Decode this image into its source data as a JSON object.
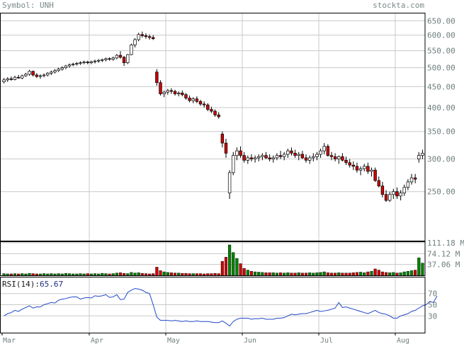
{
  "header": {
    "symbol_label": "Symbol: UNH",
    "source_label": "stockta.com"
  },
  "colors": {
    "up": "#ffffff",
    "down": "#cc0000",
    "vol_up": "#008000",
    "vol_down": "#cc0000",
    "rsi_line": "#1f47c8",
    "grid": "#c8c8c8",
    "frame": "#000000"
  },
  "chart_data": [
    {
      "type": "candlestick",
      "title": "",
      "xlabels": [
        "Mar",
        "Apr",
        "May",
        "Jun",
        "Jul",
        "Aug"
      ],
      "ylim": [
        190,
        680
      ],
      "yscale": "log",
      "yticks": [
        "650.00",
        "600.00",
        "550.00",
        "500.00",
        "450.00",
        "400.00",
        "350.00",
        "300.00",
        "250.00"
      ],
      "grid": true,
      "ohlc": [
        [
          462,
          472,
          458,
          467
        ],
        [
          467,
          474,
          462,
          470
        ],
        [
          470,
          476,
          465,
          468
        ],
        [
          468,
          478,
          466,
          474
        ],
        [
          474,
          480,
          470,
          472
        ],
        [
          472,
          481,
          469,
          478
        ],
        [
          478,
          486,
          475,
          482
        ],
        [
          482,
          494,
          478,
          490
        ],
        [
          490,
          492,
          476,
          480
        ],
        [
          480,
          485,
          472,
          476
        ],
        [
          476,
          482,
          470,
          478
        ],
        [
          478,
          484,
          474,
          480
        ],
        [
          480,
          488,
          476,
          485
        ],
        [
          485,
          492,
          480,
          488
        ],
        [
          488,
          496,
          484,
          492
        ],
        [
          492,
          500,
          488,
          496
        ],
        [
          496,
          504,
          492,
          500
        ],
        [
          500,
          508,
          496,
          505
        ],
        [
          505,
          512,
          500,
          508
        ],
        [
          508,
          514,
          504,
          510
        ],
        [
          510,
          516,
          506,
          512
        ],
        [
          512,
          518,
          508,
          514
        ],
        [
          514,
          520,
          510,
          516
        ],
        [
          516,
          520,
          510,
          514
        ],
        [
          514,
          520,
          510,
          517
        ],
        [
          517,
          523,
          512,
          519
        ],
        [
          519,
          525,
          514,
          521
        ],
        [
          521,
          526,
          516,
          523
        ],
        [
          523,
          529,
          518,
          526
        ],
        [
          526,
          530,
          520,
          524
        ],
        [
          524,
          532,
          520,
          528
        ],
        [
          528,
          540,
          524,
          536
        ],
        [
          536,
          548,
          526,
          530
        ],
        [
          530,
          534,
          505,
          514
        ],
        [
          514,
          540,
          510,
          538
        ],
        [
          538,
          572,
          536,
          568
        ],
        [
          568,
          590,
          560,
          585
        ],
        [
          585,
          608,
          580,
          602
        ],
        [
          602,
          612,
          592,
          598
        ],
        [
          598,
          606,
          588,
          595
        ],
        [
          595,
          602,
          585,
          592
        ],
        [
          592,
          600,
          584,
          588
        ],
        [
          488,
          496,
          452,
          460
        ],
        [
          460,
          466,
          428,
          432
        ],
        [
          432,
          440,
          424,
          436
        ],
        [
          436,
          444,
          430,
          440
        ],
        [
          440,
          446,
          432,
          438
        ],
        [
          438,
          442,
          428,
          432
        ],
        [
          432,
          438,
          426,
          434
        ],
        [
          434,
          440,
          426,
          430
        ],
        [
          430,
          434,
          418,
          422
        ],
        [
          422,
          428,
          412,
          416
        ],
        [
          416,
          424,
          410,
          420
        ],
        [
          420,
          426,
          410,
          414
        ],
        [
          414,
          418,
          404,
          408
        ],
        [
          408,
          414,
          400,
          406
        ],
        [
          406,
          410,
          392,
          396
        ],
        [
          396,
          402,
          388,
          392
        ],
        [
          392,
          396,
          380,
          384
        ],
        [
          384,
          390,
          376,
          380
        ],
        [
          345,
          350,
          320,
          328
        ],
        [
          328,
          336,
          302,
          310
        ],
        [
          248,
          282,
          240,
          278
        ],
        [
          278,
          312,
          274,
          306
        ],
        [
          306,
          320,
          298,
          314
        ],
        [
          314,
          322,
          302,
          306
        ],
        [
          306,
          312,
          294,
          298
        ],
        [
          298,
          306,
          292,
          302
        ],
        [
          302,
          308,
          296,
          300
        ],
        [
          300,
          306,
          294,
          302
        ],
        [
          302,
          308,
          296,
          304
        ],
        [
          304,
          310,
          298,
          306
        ],
        [
          306,
          312,
          300,
          302
        ],
        [
          302,
          308,
          296,
          300
        ],
        [
          300,
          306,
          294,
          302
        ],
        [
          302,
          310,
          298,
          306
        ],
        [
          306,
          314,
          300,
          304
        ],
        [
          304,
          312,
          298,
          308
        ],
        [
          308,
          318,
          302,
          314
        ],
        [
          314,
          320,
          306,
          310
        ],
        [
          310,
          316,
          302,
          306
        ],
        [
          306,
          312,
          298,
          308
        ],
        [
          308,
          314,
          300,
          302
        ],
        [
          302,
          308,
          294,
          298
        ],
        [
          298,
          306,
          292,
          302
        ],
        [
          302,
          310,
          296,
          304
        ],
        [
          304,
          312,
          298,
          308
        ],
        [
          308,
          318,
          302,
          314
        ],
        [
          314,
          328,
          308,
          322
        ],
        [
          322,
          326,
          304,
          306
        ],
        [
          306,
          312,
          298,
          304
        ],
        [
          304,
          310,
          296,
          300
        ],
        [
          300,
          306,
          292,
          304
        ],
        [
          304,
          310,
          296,
          298
        ],
        [
          298,
          304,
          290,
          294
        ],
        [
          294,
          300,
          286,
          290
        ],
        [
          290,
          296,
          282,
          288
        ],
        [
          288,
          294,
          278,
          282
        ],
        [
          282,
          288,
          274,
          284
        ],
        [
          284,
          292,
          280,
          288
        ],
        [
          288,
          294,
          276,
          280
        ],
        [
          280,
          286,
          272,
          282
        ],
        [
          282,
          286,
          264,
          266
        ],
        [
          266,
          272,
          256,
          258
        ],
        [
          258,
          264,
          242,
          246
        ],
        [
          246,
          252,
          236,
          238
        ],
        [
          238,
          250,
          236,
          246
        ],
        [
          246,
          254,
          240,
          250
        ],
        [
          250,
          256,
          240,
          244
        ],
        [
          244,
          252,
          238,
          248
        ],
        [
          248,
          260,
          244,
          256
        ],
        [
          256,
          268,
          252,
          264
        ],
        [
          264,
          276,
          260,
          270
        ],
        [
          270,
          276,
          262,
          268
        ],
        [
          300,
          312,
          294,
          306
        ],
        [
          306,
          316,
          300,
          310
        ]
      ],
      "volume_axis": [
        "111.18 M",
        "74.12 M",
        "37.06 M"
      ],
      "volume": [
        6,
        5,
        5,
        6,
        5,
        6,
        5,
        7,
        6,
        5,
        5,
        6,
        5,
        6,
        5,
        6,
        5,
        7,
        6,
        5,
        5,
        6,
        5,
        6,
        5,
        6,
        5,
        7,
        6,
        5,
        6,
        8,
        9,
        7,
        6,
        10,
        8,
        9,
        7,
        6,
        5,
        6,
        28,
        16,
        12,
        10,
        9,
        8,
        8,
        7,
        7,
        6,
        6,
        6,
        6,
        5,
        6,
        6,
        7,
        6,
        48,
        62,
        104,
        78,
        58,
        40,
        24,
        18,
        14,
        12,
        11,
        10,
        9,
        9,
        9,
        8,
        9,
        8,
        9,
        8,
        8,
        9,
        8,
        8,
        9,
        8,
        9,
        10,
        12,
        9,
        8,
        8,
        9,
        8,
        8,
        8,
        9,
        10,
        11,
        9,
        12,
        14,
        22,
        18,
        12,
        10,
        9,
        10,
        8,
        9,
        12,
        14,
        16,
        18,
        60,
        42
      ],
      "rsi_label": "RSI(14):",
      "rsi_value": "65.67",
      "rsi_ticks": [
        "70",
        "50",
        "30"
      ],
      "rsi": [
        30,
        34,
        36,
        40,
        38,
        42,
        45,
        48,
        44,
        46,
        46,
        50,
        52,
        54,
        53,
        58,
        60,
        61,
        63,
        64,
        64,
        60,
        62,
        63,
        62,
        66,
        65,
        66,
        68,
        63,
        64,
        68,
        59,
        60,
        72,
        76,
        79,
        78,
        76,
        72,
        70,
        50,
        28,
        22,
        22,
        22,
        21,
        22,
        21,
        20,
        21,
        20,
        20,
        21,
        20,
        20,
        20,
        19,
        18,
        18,
        21,
        17,
        12,
        20,
        24,
        26,
        26,
        26,
        24,
        25,
        25,
        26,
        24,
        24,
        24,
        26,
        26,
        27,
        30,
        33,
        32,
        33,
        34,
        34,
        36,
        38,
        40,
        38,
        39,
        40,
        42,
        44,
        54,
        45,
        46,
        44,
        42,
        40,
        38,
        36,
        34,
        37,
        40,
        36,
        34,
        33,
        30,
        26,
        26,
        30,
        32,
        34,
        38,
        40,
        44,
        48,
        50,
        56,
        54,
        65.67
      ]
    }
  ]
}
